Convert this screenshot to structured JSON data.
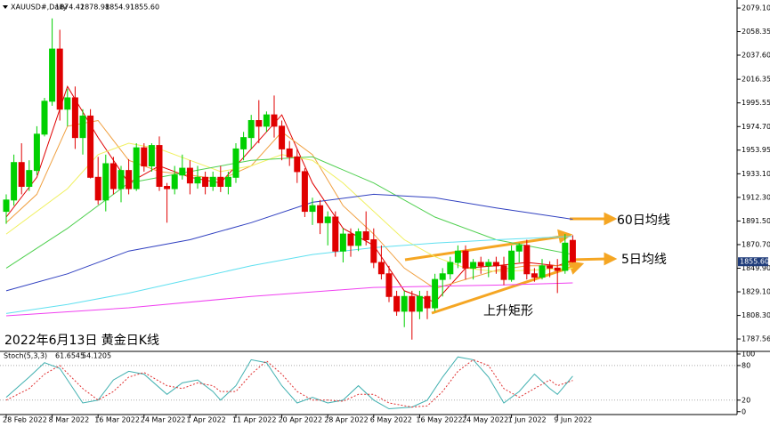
{
  "chart_data": [
    {
      "type": "candlestick",
      "title": "XAUUSD#,Daily",
      "ohlc_labels": [
        "1874.42",
        "1878.98",
        "1854.91",
        "1855.60"
      ],
      "annotation": "2022年6月13日 黄金日K线",
      "categories": [
        "28 Feb 2022",
        null,
        null,
        null,
        null,
        null,
        "8 Mar 2022",
        null,
        null,
        null,
        null,
        null,
        "16 Mar 2022",
        null,
        null,
        null,
        null,
        null,
        "24 Mar 2022",
        null,
        null,
        null,
        null,
        null,
        "1 Apr 2022",
        null,
        null,
        null,
        null,
        null,
        "11 Apr 2022",
        null,
        null,
        null,
        null,
        null,
        "20 Apr 2022",
        null,
        null,
        null,
        null,
        null,
        "28 Apr 2022",
        null,
        null,
        null,
        null,
        null,
        "6 May 2022",
        null,
        null,
        null,
        null,
        null,
        "16 May 2022",
        null,
        null,
        null,
        null,
        null,
        "24 May 2022",
        null,
        null,
        null,
        null,
        null,
        "1 Jun 2022",
        null,
        null,
        null,
        null,
        null,
        "9 Jun 2022",
        null,
        null
      ],
      "up_color": "#00d000",
      "down_color": "#e00000",
      "open": [
        1900,
        1910,
        1943,
        1922,
        1936,
        1968,
        1997,
        2043,
        1990,
        2000,
        1965,
        1984,
        1930,
        1910,
        1942,
        1920,
        1936,
        1920,
        1956,
        1940,
        1958,
        1922,
        1920,
        1932,
        1938,
        1925,
        1930,
        1922,
        1930,
        1922,
        1930,
        1955,
        1965,
        1980,
        1975,
        1985,
        1975,
        1955,
        1948,
        1935,
        1900,
        1905,
        1890,
        1895,
        1865,
        1880,
        1870,
        1882,
        1875,
        1855,
        1845,
        1825,
        1812,
        1825,
        1812,
        1825,
        1815,
        1840,
        1845,
        1855,
        1865,
        1850,
        1855,
        1852,
        1855,
        1852,
        1840,
        1865,
        1870,
        1845,
        1842,
        1852,
        1850,
        1848,
        1874.42
      ],
      "high": [
        1915,
        1950,
        1960,
        1945,
        1975,
        2000,
        2070,
        2060,
        2008,
        2010,
        1990,
        1990,
        1948,
        1950,
        1948,
        1940,
        1946,
        1960,
        1960,
        1960,
        1966,
        1925,
        1940,
        1950,
        1945,
        1940,
        1935,
        1935,
        1940,
        1935,
        1960,
        1970,
        1985,
        1998,
        1988,
        2002,
        1980,
        1962,
        1955,
        1938,
        1912,
        1910,
        1900,
        1900,
        1885,
        1885,
        1885,
        1900,
        1885,
        1870,
        1852,
        1830,
        1830,
        1830,
        1830,
        1830,
        1845,
        1850,
        1860,
        1870,
        1870,
        1858,
        1860,
        1858,
        1860,
        1860,
        1870,
        1872,
        1875,
        1850,
        1858,
        1856,
        1858,
        1880,
        1878.98
      ],
      "low": [
        1889,
        1905,
        1915,
        1918,
        1932,
        1966,
        1993,
        1980,
        1975,
        1955,
        1950,
        1929,
        1906,
        1900,
        1915,
        1908,
        1915,
        1918,
        1935,
        1935,
        1918,
        1890,
        1915,
        1928,
        1915,
        1920,
        1915,
        1918,
        1917,
        1915,
        1925,
        1945,
        1955,
        1960,
        1970,
        1965,
        1945,
        1940,
        1925,
        1895,
        1888,
        1880,
        1870,
        1860,
        1855,
        1860,
        1865,
        1870,
        1850,
        1840,
        1820,
        1808,
        1798,
        1787,
        1805,
        1805,
        1812,
        1825,
        1840,
        1850,
        1840,
        1840,
        1845,
        1842,
        1845,
        1835,
        1838,
        1855,
        1840,
        1838,
        1840,
        1842,
        1828,
        1845,
        1854.91
      ],
      "close": [
        1910,
        1943,
        1922,
        1936,
        1968,
        1997,
        2043,
        1990,
        2000,
        1965,
        1984,
        1930,
        1910,
        1942,
        1920,
        1936,
        1920,
        1956,
        1940,
        1958,
        1922,
        1920,
        1932,
        1938,
        1925,
        1930,
        1922,
        1930,
        1922,
        1930,
        1955,
        1965,
        1980,
        1975,
        1985,
        1975,
        1955,
        1948,
        1935,
        1900,
        1905,
        1890,
        1895,
        1865,
        1880,
        1870,
        1882,
        1875,
        1855,
        1845,
        1825,
        1812,
        1825,
        1812,
        1825,
        1815,
        1840,
        1845,
        1855,
        1865,
        1850,
        1855,
        1852,
        1855,
        1852,
        1840,
        1865,
        1870,
        1845,
        1842,
        1852,
        1850,
        1848,
        1872,
        1855.6
      ],
      "lines": [
        {
          "color": "#e00000",
          "x": [
            0,
            4,
            8,
            12,
            16,
            20,
            24,
            28,
            32,
            36,
            40,
            44,
            48,
            52,
            56,
            60,
            64,
            68,
            72,
            74
          ],
          "values": [
            1895,
            1930,
            2010,
            1965,
            1925,
            1940,
            1930,
            1925,
            1955,
            1985,
            1925,
            1885,
            1870,
            1830,
            1820,
            1850,
            1852,
            1855,
            1852,
            1857
          ]
        },
        {
          "color": "#f0a040",
          "x": [
            0,
            4,
            8,
            12,
            16,
            20,
            24,
            28,
            32,
            36,
            40,
            44,
            48,
            52,
            56,
            60,
            64,
            68,
            72,
            74
          ],
          "values": [
            1890,
            1915,
            1975,
            1980,
            1945,
            1935,
            1932,
            1928,
            1940,
            1970,
            1950,
            1905,
            1880,
            1850,
            1832,
            1840,
            1848,
            1852,
            1852,
            1853
          ]
        },
        {
          "color": "#f0f060",
          "x": [
            0,
            8,
            12,
            16,
            20,
            24,
            28,
            32,
            36,
            40,
            44,
            48,
            52,
            56,
            60,
            64,
            68,
            74
          ],
          "values": [
            1880,
            1920,
            1950,
            1960,
            1955,
            1945,
            1935,
            1940,
            1950,
            1945,
            1925,
            1900,
            1875,
            1860,
            1850,
            1847,
            1848,
            1850
          ]
        },
        {
          "color": "#50d050",
          "x": [
            0,
            8,
            16,
            24,
            32,
            40,
            48,
            56,
            64,
            74
          ],
          "values": [
            1850,
            1885,
            1925,
            1935,
            1945,
            1948,
            1925,
            1895,
            1875,
            1862
          ]
        },
        {
          "color": "#3040c0",
          "x": [
            0,
            8,
            16,
            24,
            32,
            40,
            48,
            56,
            64,
            74
          ],
          "values": [
            1830,
            1845,
            1865,
            1875,
            1890,
            1908,
            1915,
            1912,
            1903,
            1893
          ]
        },
        {
          "color": "#60e0f0",
          "x": [
            0,
            8,
            16,
            24,
            32,
            40,
            48,
            56,
            64,
            74
          ],
          "values": [
            1810,
            1818,
            1828,
            1840,
            1852,
            1862,
            1868,
            1872,
            1875,
            1878
          ]
        },
        {
          "color": "#f040f0",
          "x": [
            0,
            16,
            32,
            48,
            64,
            74
          ],
          "values": [
            1808,
            1815,
            1825,
            1833,
            1835,
            1837
          ]
        }
      ],
      "ylim": [
        1778.2,
        2086.2
      ],
      "yticks": [
        {
          "value": 2079.1,
          "label": "2079.10"
        },
        {
          "value": 2058.35,
          "label": "2058.35"
        },
        {
          "value": 2037.6,
          "label": "2037.60"
        },
        {
          "value": 2016.35,
          "label": "2016.35"
        },
        {
          "value": 1995.55,
          "label": "1995.55"
        },
        {
          "value": 1974.7,
          "label": "1974.70"
        },
        {
          "value": 1953.95,
          "label": "1953.95"
        },
        {
          "value": 1933.1,
          "label": "1933.10"
        },
        {
          "value": 1912.3,
          "label": "1912.30"
        },
        {
          "value": 1891.5,
          "label": "1891.50"
        },
        {
          "value": 1870.7,
          "label": "1870.70"
        },
        {
          "value": 1849.9,
          "label": "1849.90"
        },
        {
          "value": 1829.1,
          "label": "1829.10"
        },
        {
          "value": 1808.3,
          "label": "1808.30"
        },
        {
          "value": 1787.56,
          "label": "1787.56"
        }
      ],
      "annotations": [
        "60日均线",
        "5日均线",
        "上升矩形"
      ]
    },
    {
      "type": "line",
      "title": "Stoch(5,3,3)",
      "series": [
        {
          "color": "#40b0b0",
          "dash": false,
          "x": [
            0,
            3,
            5,
            7,
            10,
            12,
            14,
            16,
            18,
            21,
            23,
            25,
            27,
            28,
            30,
            32,
            34,
            36,
            38,
            40,
            42,
            44,
            46,
            48,
            50,
            53,
            55,
            57,
            59,
            61,
            63,
            65,
            67,
            69,
            71,
            72,
            74
          ],
          "values": [
            25,
            60,
            85,
            75,
            15,
            20,
            55,
            70,
            65,
            30,
            50,
            55,
            35,
            20,
            45,
            90,
            85,
            45,
            15,
            25,
            15,
            20,
            45,
            20,
            5,
            8,
            20,
            60,
            95,
            90,
            60,
            15,
            35,
            65,
            40,
            30,
            61.6545
          ]
        },
        {
          "color": "#e03030",
          "dash": true,
          "x": [
            0,
            3,
            5,
            7,
            10,
            12,
            14,
            16,
            18,
            21,
            23,
            25,
            27,
            28,
            30,
            32,
            34,
            36,
            38,
            40,
            42,
            44,
            46,
            48,
            50,
            53,
            55,
            57,
            59,
            61,
            63,
            65,
            67,
            69,
            71,
            72,
            74
          ],
          "values": [
            20,
            40,
            65,
            80,
            40,
            20,
            35,
            60,
            68,
            45,
            40,
            50,
            45,
            35,
            35,
            65,
            88,
            65,
            35,
            20,
            20,
            18,
            30,
            30,
            15,
            8,
            10,
            35,
            70,
            90,
            80,
            40,
            25,
            40,
            55,
            45,
            54.1205
          ]
        }
      ],
      "ylim": [
        -5,
        103
      ],
      "yticks": [
        100,
        80,
        20,
        0
      ],
      "levels": [
        80,
        20
      ]
    }
  ]
}
